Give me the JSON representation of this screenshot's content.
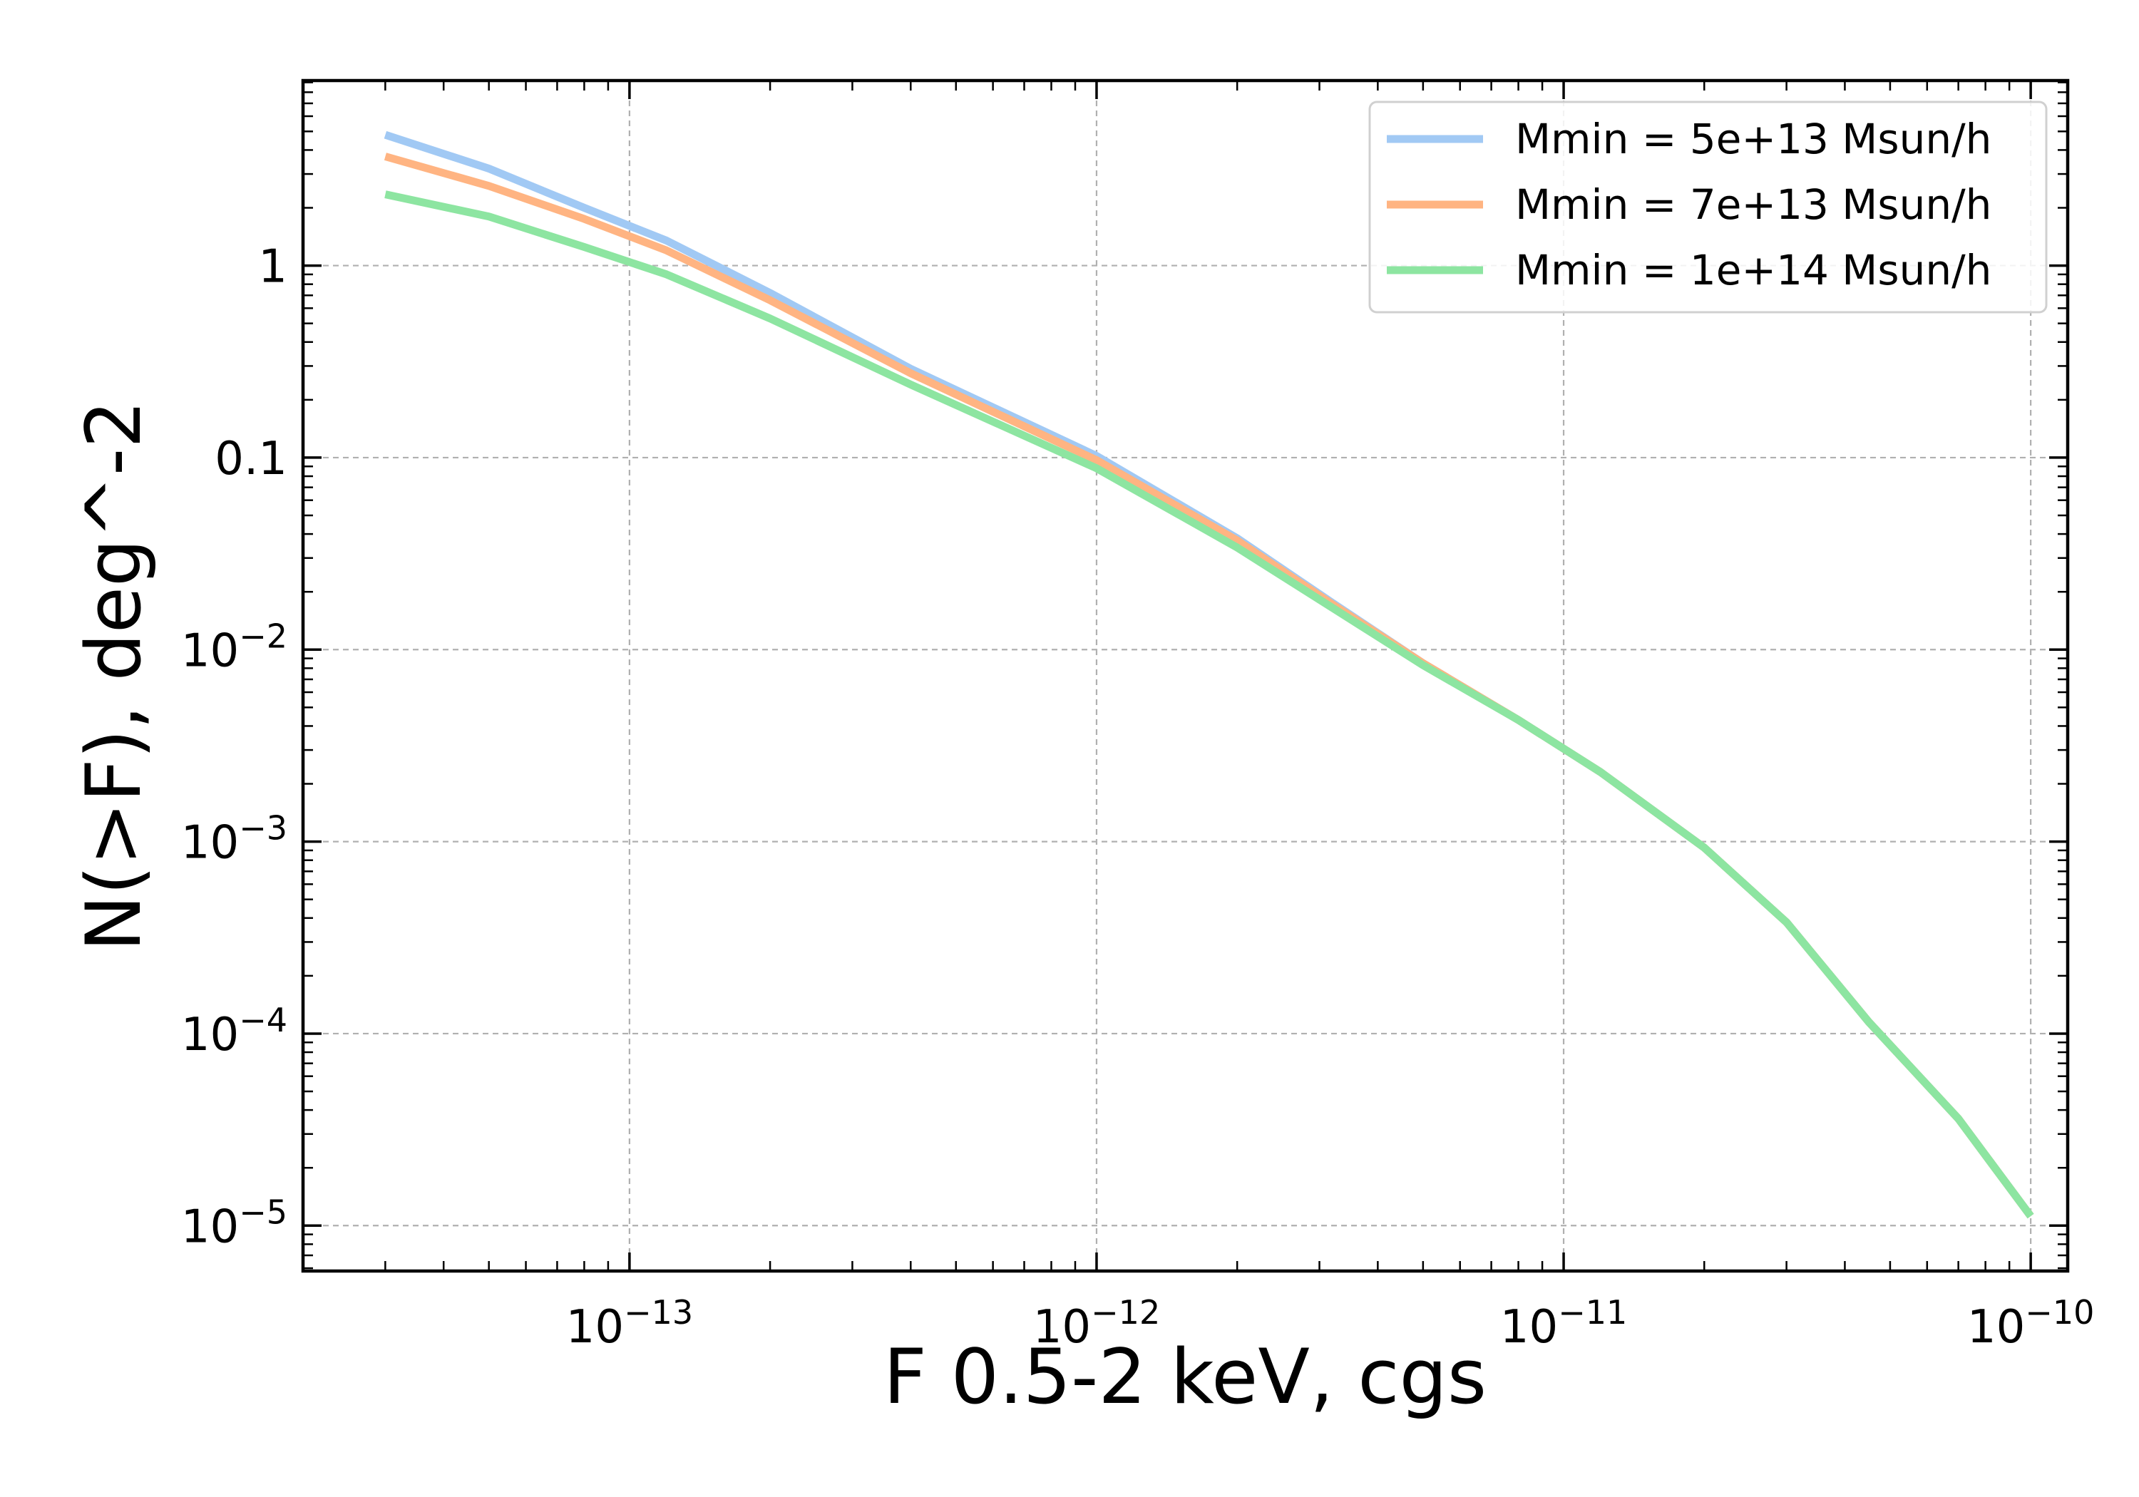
{
  "chart_data": {
    "type": "line",
    "title": "",
    "xlabel": "F 0.5-2 keV, cgs",
    "ylabel": "N(>F), deg^-2",
    "xscale": "log",
    "yscale": "log",
    "xlim": [
      2e-14,
      1.2e-10
    ],
    "ylim": [
      5.8e-06,
      9.2
    ],
    "grid": true,
    "legend_position": "top-right",
    "x_ticks": [
      {
        "value": 1e-13,
        "base": "10",
        "exp": "−13"
      },
      {
        "value": 1e-12,
        "base": "10",
        "exp": "−12"
      },
      {
        "value": 1e-11,
        "base": "10",
        "exp": "−11"
      },
      {
        "value": 1e-10,
        "base": "10",
        "exp": "−10"
      }
    ],
    "y_ticks": [
      {
        "value": 1,
        "base": "1",
        "exp": ""
      },
      {
        "value": 0.1,
        "base": "0.1",
        "exp": ""
      },
      {
        "value": 0.01,
        "base": "10",
        "exp": "−2"
      },
      {
        "value": 0.001,
        "base": "10",
        "exp": "−3"
      },
      {
        "value": 0.0001,
        "base": "10",
        "exp": "−4"
      },
      {
        "value": 1e-05,
        "base": "10",
        "exp": "−5"
      }
    ],
    "series": [
      {
        "name": "Mmin = 5e+13 Msun/h",
        "color": "#a1c9f4",
        "x": [
          3e-14,
          5e-14,
          8e-14,
          1.2e-13,
          2e-13,
          4e-13,
          1e-12,
          2e-12,
          3.2e-12,
          5e-12,
          8e-12,
          1.2e-11,
          2e-11,
          3e-11,
          4.5e-11,
          7e-11,
          1e-10
        ],
        "y": [
          4.8,
          3.2,
          2.0,
          1.35,
          0.72,
          0.29,
          0.102,
          0.038,
          0.0175,
          0.0085,
          0.0043,
          0.0023,
          0.00093,
          0.00038,
          0.000115,
          3.6e-05,
          1.12e-05
        ]
      },
      {
        "name": "Mmin = 7e+13 Msun/h",
        "color": "#ffb482",
        "x": [
          3e-14,
          5e-14,
          8e-14,
          1.2e-13,
          2e-13,
          4e-13,
          1e-12,
          2e-12,
          3.2e-12,
          5e-12,
          8e-12,
          1.2e-11,
          2e-11,
          3e-11,
          4.5e-11,
          7e-11,
          1e-10
        ],
        "y": [
          3.7,
          2.6,
          1.75,
          1.2,
          0.66,
          0.275,
          0.097,
          0.037,
          0.0172,
          0.0085,
          0.0043,
          0.0023,
          0.00093,
          0.00038,
          0.000115,
          3.6e-05,
          1.12e-05
        ]
      },
      {
        "name": "Mmin = 1e+14 Msun/h",
        "color": "#8de5a1",
        "x": [
          3e-14,
          5e-14,
          8e-14,
          1.2e-13,
          2e-13,
          4e-13,
          1e-12,
          2e-12,
          3.2e-12,
          5e-12,
          8e-12,
          1.2e-11,
          2e-11,
          3e-11,
          4.5e-11,
          7e-11,
          1e-10
        ],
        "y": [
          2.35,
          1.8,
          1.25,
          0.9,
          0.53,
          0.24,
          0.088,
          0.034,
          0.0165,
          0.0083,
          0.0043,
          0.0023,
          0.00093,
          0.00038,
          0.000115,
          3.6e-05,
          1.12e-05
        ]
      }
    ]
  }
}
